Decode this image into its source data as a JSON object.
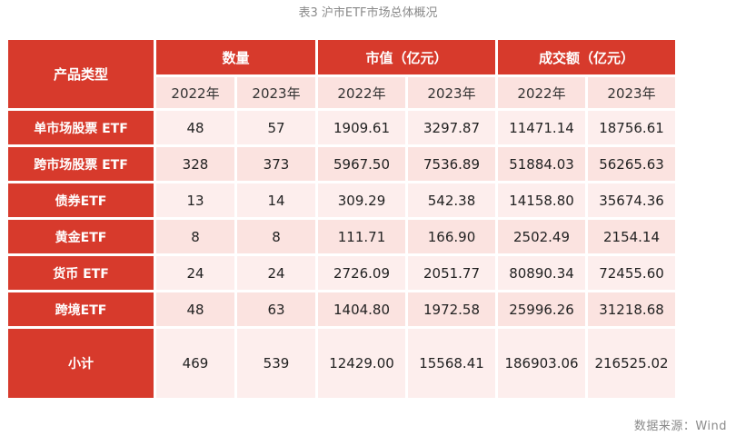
{
  "caption": "表3 沪市ETF市场总体概况",
  "source": "数据来源：Wind",
  "table": {
    "corner_header": "产品类型",
    "group_headers": [
      "数量",
      "市值（亿元）",
      "成交额（亿元）"
    ],
    "year_headers": [
      "2022年",
      "2023年",
      "2022年",
      "2023年",
      "2022年",
      "2023年"
    ],
    "rows": [
      {
        "label": "单市场股票 ETF",
        "values": [
          "48",
          "57",
          "1909.61",
          "3297.87",
          "11471.14",
          "18756.61"
        ]
      },
      {
        "label": "跨市场股票 ETF",
        "values": [
          "328",
          "373",
          "5967.50",
          "7536.89",
          "51884.03",
          "56265.63"
        ]
      },
      {
        "label": "债券ETF",
        "values": [
          "13",
          "14",
          "309.29",
          "542.38",
          "14158.80",
          "35674.36"
        ]
      },
      {
        "label": "黄金ETF",
        "values": [
          "8",
          "8",
          "111.71",
          "166.90",
          "2502.49",
          "2154.14"
        ]
      },
      {
        "label": "货币 ETF",
        "values": [
          "24",
          "24",
          "2726.09",
          "2051.77",
          "80890.34",
          "72455.60"
        ]
      },
      {
        "label": "跨境ETF",
        "values": [
          "48",
          "63",
          "1404.80",
          "1972.58",
          "25996.26",
          "31218.68"
        ]
      },
      {
        "label": "小计",
        "values": [
          "469",
          "539",
          "12429.00",
          "15568.41",
          "186903.06",
          "216525.02"
        ]
      }
    ]
  },
  "colors": {
    "header_red": "#d73a2c",
    "light_pink": "#fdeeed",
    "pink": "#fbe3e0"
  }
}
